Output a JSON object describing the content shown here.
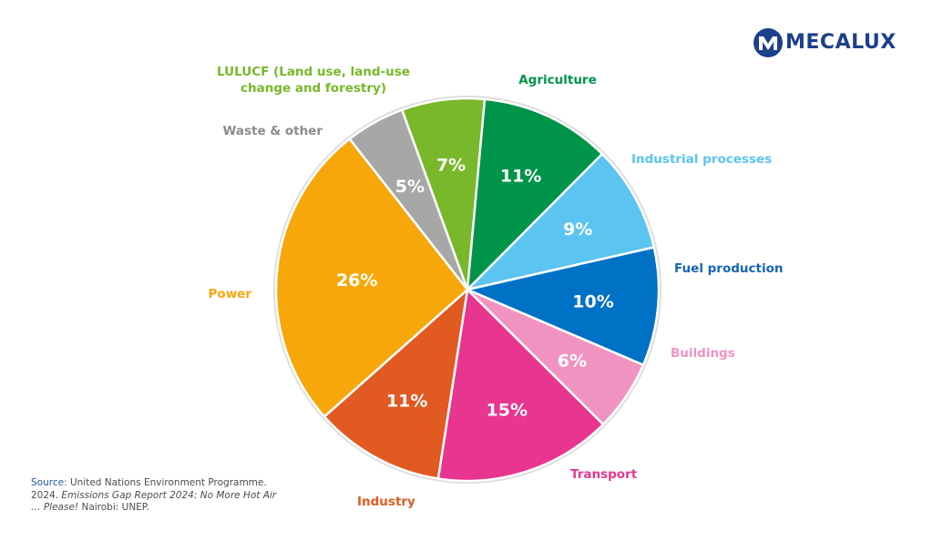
{
  "logo": {
    "text": "MECALUX",
    "color": "#1d3f8c"
  },
  "source": {
    "label": "Source:",
    "pre": " United Nations Environment Programme. 2024. ",
    "title": "Emissions Gap Report 2024: No More Hot Air … Please!",
    "post": " Nairobi: UNEP."
  },
  "chart_data": {
    "type": "pie",
    "start_angle_deg": -20,
    "slices": [
      {
        "id": "lulucf",
        "label_lines": [
          "LULUCF (Land use, land-use",
          "change and forestry)"
        ],
        "value": 7,
        "value_text": "7%",
        "color": "#78b82a"
      },
      {
        "id": "agriculture",
        "label_lines": [
          "Agriculture"
        ],
        "value": 11,
        "value_text": "11%",
        "color": "#00944a"
      },
      {
        "id": "industrial-processes",
        "label_lines": [
          "Industrial processes"
        ],
        "value": 9,
        "value_text": "9%",
        "color": "#5bc4f1"
      },
      {
        "id": "fuel-production",
        "label_lines": [
          "Fuel production"
        ],
        "value": 10,
        "value_text": "10%",
        "color": "#0072c6"
      },
      {
        "id": "buildings",
        "label_lines": [
          "Buildings"
        ],
        "value": 6,
        "value_text": "6%",
        "color": "#f193c0"
      },
      {
        "id": "transport",
        "label_lines": [
          "Transport"
        ],
        "value": 15,
        "value_text": "15%",
        "color": "#e8358f"
      },
      {
        "id": "industry",
        "label_lines": [
          "Industry"
        ],
        "value": 11,
        "value_text": "11%",
        "color": "#e05a22"
      },
      {
        "id": "power",
        "label_lines": [
          "Power"
        ],
        "value": 26,
        "value_text": "26%",
        "color": "#f7a70a"
      },
      {
        "id": "waste-other",
        "label_lines": [
          "Waste & other"
        ],
        "value": 5,
        "value_text": "5%",
        "color": "#a7a7a7"
      }
    ],
    "label_colors": {
      "lulucf": "#78b82a",
      "agriculture": "#00944a",
      "industrial-processes": "#5bc4f1",
      "fuel-production": "#1766b8",
      "buildings": "#f193c0",
      "transport": "#e8358f",
      "industry": "#e05a22",
      "power": "#f7a70a",
      "waste-other": "#8c8c8c"
    },
    "border_color": "#dcdcdc"
  }
}
